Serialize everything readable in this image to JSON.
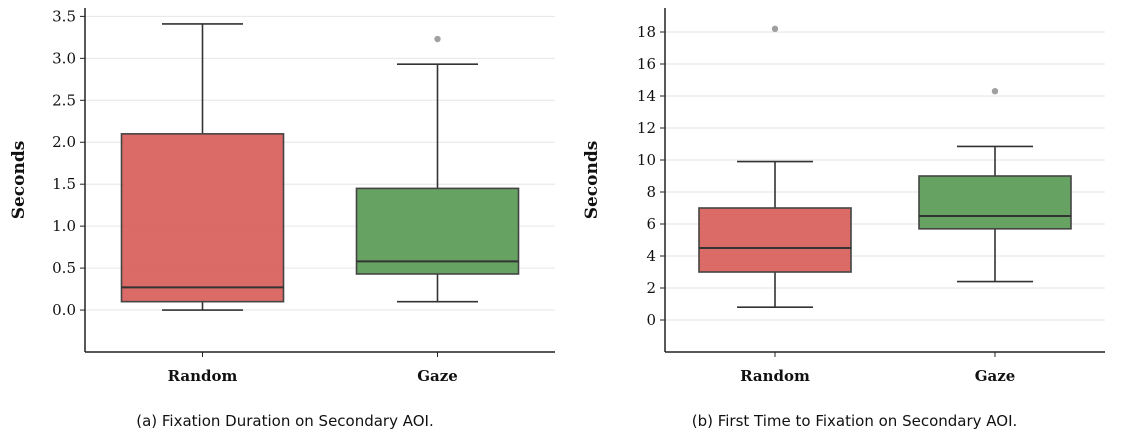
{
  "chart_data": [
    {
      "type": "box",
      "categories": [
        "Random",
        "Gaze"
      ],
      "ylabel": "Seconds",
      "ylim": [
        -0.5,
        3.6
      ],
      "yticks": [
        "0.0",
        "0.5",
        "1.0",
        "1.5",
        "2.0",
        "2.5",
        "3.0",
        "3.5"
      ],
      "caption": "(a) Fixation Duration on Secondary AOI.",
      "grid": "horizontal",
      "colors": [
        "#d9635f",
        "#5e9e5b"
      ],
      "boxes": [
        {
          "category": "Random",
          "whisker_low": 0.0,
          "q1": 0.1,
          "median": 0.27,
          "q3": 2.1,
          "whisker_high": 3.41,
          "outliers": []
        },
        {
          "category": "Gaze",
          "whisker_low": 0.1,
          "q1": 0.43,
          "median": 0.58,
          "q3": 1.45,
          "whisker_high": 2.93,
          "outliers": [
            3.23
          ]
        }
      ]
    },
    {
      "type": "box",
      "categories": [
        "Random",
        "Gaze"
      ],
      "ylabel": "Seconds",
      "ylim": [
        -2,
        19.5
      ],
      "yticks": [
        "0",
        "2",
        "4",
        "6",
        "8",
        "10",
        "12",
        "14",
        "16",
        "18"
      ],
      "caption": "(b) First Time to Fixation on Secondary AOI.",
      "grid": "horizontal",
      "colors": [
        "#d9635f",
        "#5e9e5b"
      ],
      "boxes": [
        {
          "category": "Random",
          "whisker_low": 0.8,
          "q1": 3.0,
          "median": 4.5,
          "q3": 7.0,
          "whisker_high": 9.9,
          "outliers": [
            18.2
          ]
        },
        {
          "category": "Gaze",
          "whisker_low": 2.4,
          "q1": 5.7,
          "median": 6.5,
          "q3": 9.0,
          "whisker_high": 10.85,
          "outliers": [
            14.3
          ]
        }
      ]
    }
  ]
}
